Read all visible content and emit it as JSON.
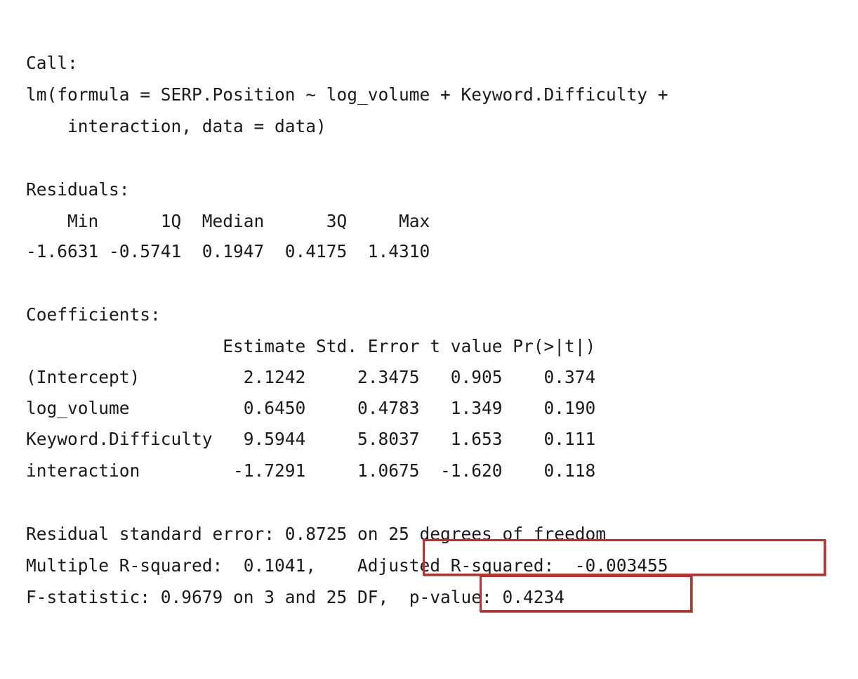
{
  "call": {
    "label": "Call:",
    "formula_line1": "lm(formula = SERP.Position ~ log_volume + Keyword.Difficulty +",
    "formula_line2": "    interaction, data = data)"
  },
  "residuals": {
    "label": "Residuals:",
    "header": "    Min      1Q  Median      3Q     Max ",
    "values": "-1.6631 -0.5741  0.1947  0.4175  1.4310 "
  },
  "coefficients": {
    "label": "Coefficients:",
    "header": "                   Estimate Std. Error t value Pr(>|t|)",
    "rows": [
      "(Intercept)          2.1242     2.3475   0.905    0.374",
      "log_volume           0.6450     0.4783   1.349    0.190",
      "Keyword.Difficulty   9.5944     5.8037   1.653    0.111",
      "interaction         -1.7291     1.0675  -1.620    0.118"
    ]
  },
  "summary": {
    "rse": "Residual standard error: 0.8725 on 25 degrees of freedom",
    "r_squared": "Multiple R-squared:  0.1041,\tAdjusted R-squared:  -0.003455 ",
    "f_statistic": "F-statistic: 0.9679 on 3 and 25 DF,  p-value: 0.4234"
  },
  "highlight_color": "#c0302b"
}
